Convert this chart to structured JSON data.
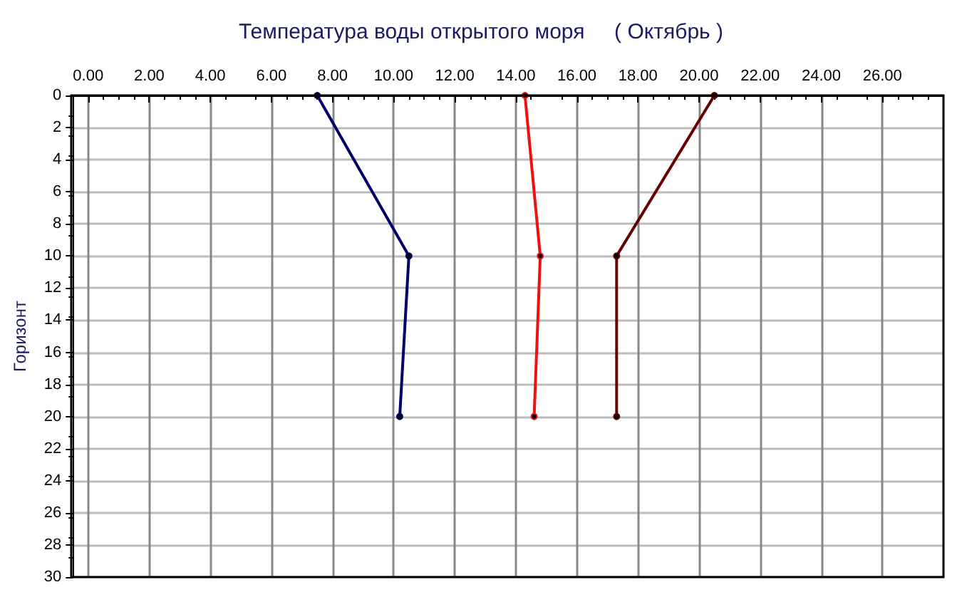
{
  "chart_data": {
    "type": "line",
    "title": "Температура воды открытого моря     ( Октябрь )",
    "ylabel": "Горизонт",
    "xlim": [
      -0.5,
      28
    ],
    "xticks": [
      {
        "value": 0,
        "label": "0.00"
      },
      {
        "value": 2,
        "label": "2.00"
      },
      {
        "value": 4,
        "label": "4.00"
      },
      {
        "value": 6,
        "label": "6.00"
      },
      {
        "value": 8,
        "label": "8.00"
      },
      {
        "value": 10,
        "label": "10.00"
      },
      {
        "value": 12,
        "label": "12.00"
      },
      {
        "value": 14,
        "label": "14.00"
      },
      {
        "value": 16,
        "label": "16.00"
      },
      {
        "value": 18,
        "label": "18.00"
      },
      {
        "value": 20,
        "label": "20.00"
      },
      {
        "value": 22,
        "label": "22.00"
      },
      {
        "value": 24,
        "label": "24.00"
      },
      {
        "value": 26,
        "label": "26.00"
      }
    ],
    "ylim": [
      30,
      0
    ],
    "yticks": [
      0,
      2,
      4,
      6,
      8,
      10,
      12,
      14,
      16,
      18,
      20,
      22,
      24,
      26,
      28,
      30
    ],
    "grid": true,
    "marker": "circle",
    "line_style": "solid",
    "series": [
      {
        "color": "#000066",
        "x": [
          7.5,
          10.5,
          10.2
        ],
        "values": [
          0,
          10,
          20
        ]
      },
      {
        "color": "#ee1111",
        "x": [
          14.3,
          14.8,
          14.6
        ],
        "values": [
          0,
          10,
          20
        ]
      },
      {
        "color": "#660000",
        "x": [
          20.5,
          17.3,
          17.3
        ],
        "values": [
          0,
          10,
          20
        ]
      }
    ]
  }
}
